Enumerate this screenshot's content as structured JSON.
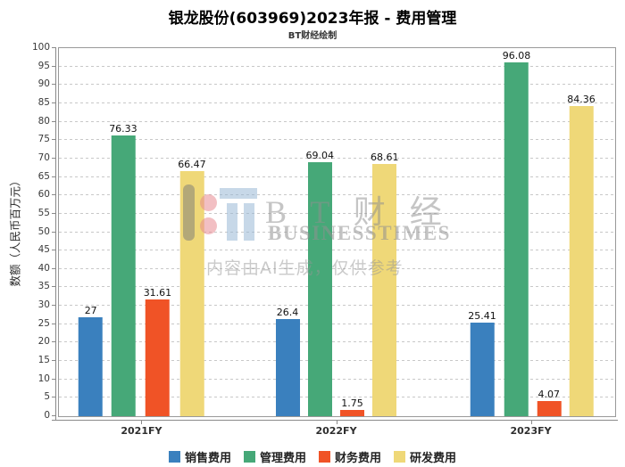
{
  "header": {
    "title": "银龙股份(603969)2023年报 - 费用管理",
    "subtitle": "BT财经绘制"
  },
  "watermark": {
    "brand_cn": "B T 财 经",
    "brand_en": "BUSINESSTIMES",
    "disclaimer": "内容由AI生成，仅供参考"
  },
  "chart_data": {
    "type": "bar",
    "title": "银龙股份(603969)2023年报 - 费用管理",
    "subtitle": "BT财经绘制",
    "categories": [
      "2021FY",
      "2022FY",
      "2023FY"
    ],
    "series": [
      {
        "name": "销售费用",
        "color": "#3A80BE",
        "values": [
          27,
          26.4,
          25.41
        ]
      },
      {
        "name": "管理费用",
        "color": "#46A878",
        "values": [
          76.33,
          69.04,
          96.08
        ]
      },
      {
        "name": "财务费用",
        "color": "#F05326",
        "values": [
          31.61,
          1.75,
          4.07
        ]
      },
      {
        "name": "研发费用",
        "color": "#EFD878",
        "values": [
          66.47,
          68.61,
          84.36
        ]
      }
    ],
    "ylabel": "数额（人民币百万元）",
    "xlabel": "",
    "ylim": [
      0,
      100
    ],
    "ytick_step": 5,
    "grid": "dashed-horizontal",
    "legend_position": "bottom",
    "bar_value_labels": true
  }
}
